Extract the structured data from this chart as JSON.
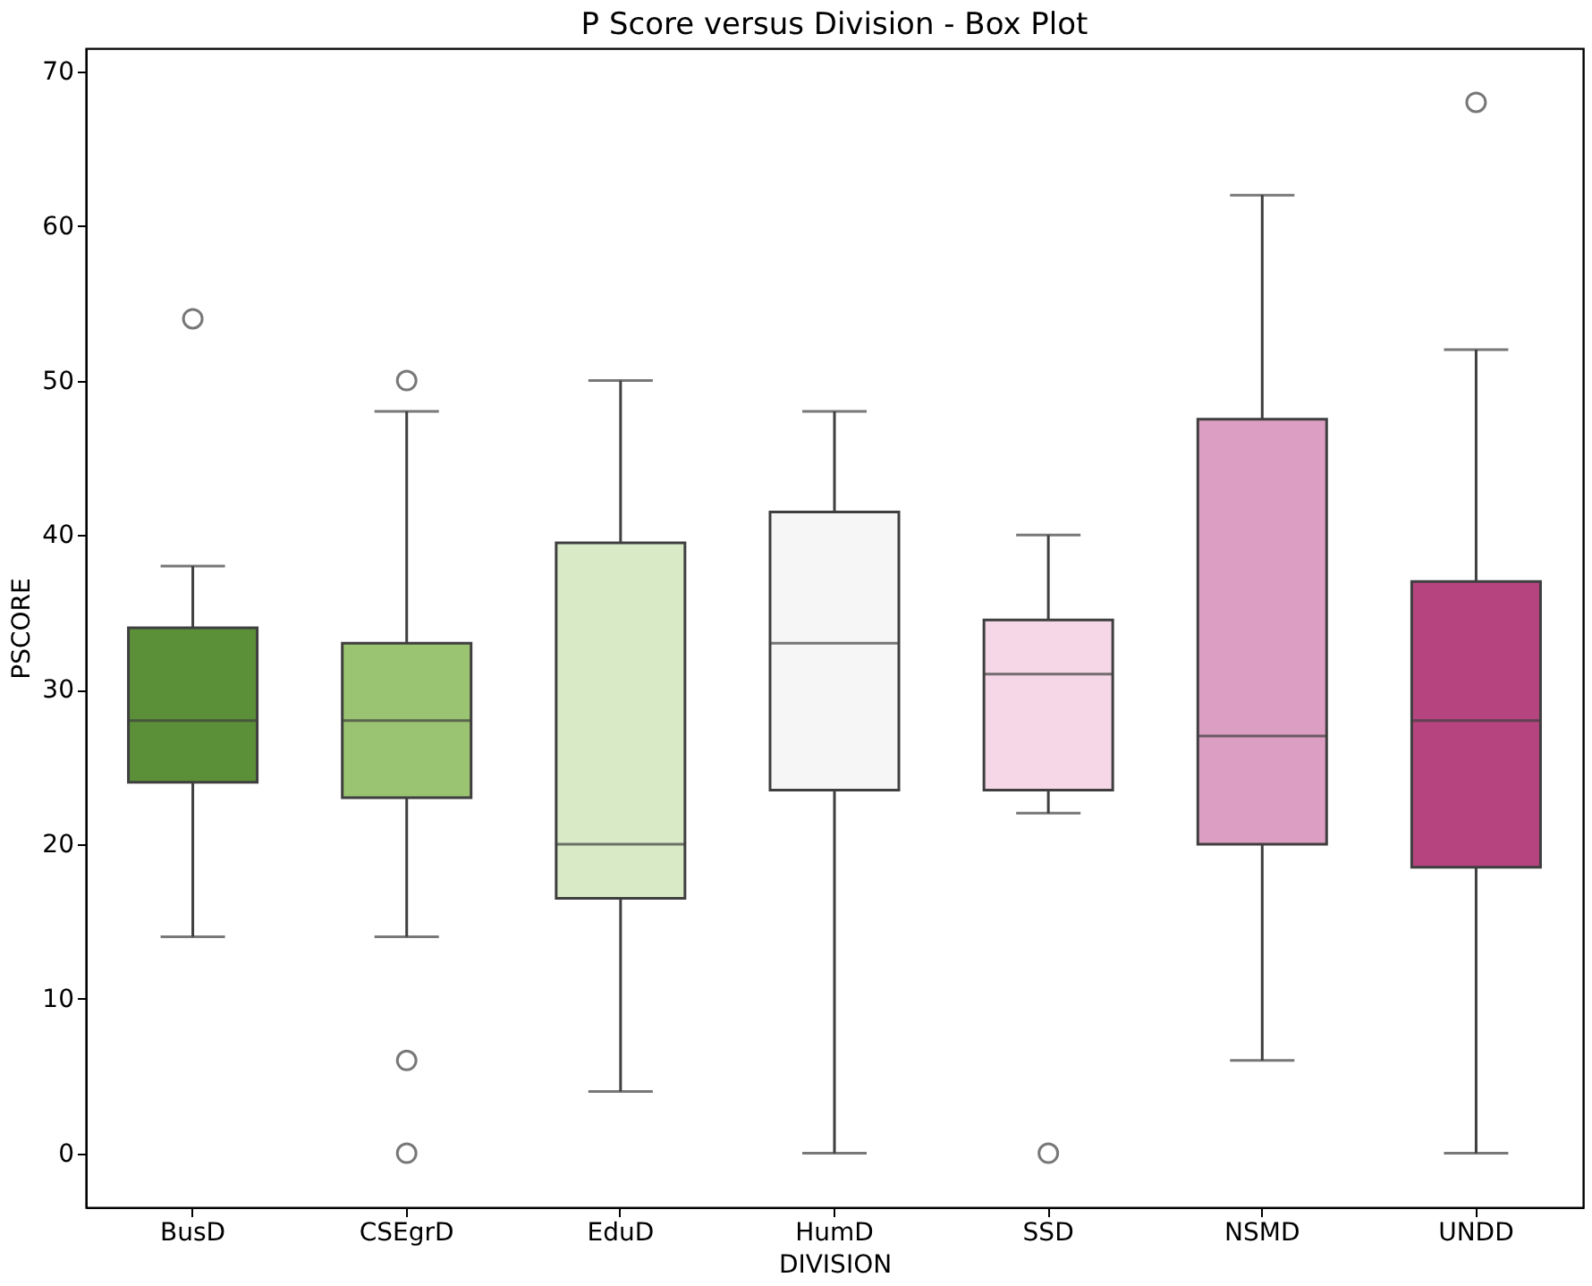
{
  "chart_data": {
    "type": "box",
    "title": "P Score versus Division - Box Plot",
    "xlabel": "DIVISION",
    "ylabel": "PSCORE",
    "categories": [
      "BusD",
      "CSEgrD",
      "EduD",
      "HumD",
      "SSD",
      "NSMD",
      "UNDD"
    ],
    "colors": [
      "#5b8f38",
      "#9bc472",
      "#d9eac7",
      "#f6f6f6",
      "#f5d7e7",
      "#dc9ec2",
      "#b5447f"
    ],
    "boxes": [
      {
        "low": 14,
        "q1": 24,
        "median": 28,
        "q3": 34,
        "high": 38,
        "outliers": [
          54
        ]
      },
      {
        "low": 14,
        "q1": 23,
        "median": 28,
        "q3": 33,
        "high": 48,
        "outliers": [
          50,
          6,
          0
        ]
      },
      {
        "low": 4,
        "q1": 16.5,
        "median": 20,
        "q3": 39.5,
        "high": 50
      },
      {
        "low": 0,
        "q1": 23.5,
        "median": 33,
        "q3": 41.5,
        "high": 48
      },
      {
        "low": 22,
        "q1": 23.5,
        "median": 31,
        "q3": 34.5,
        "high": 40,
        "outliers": [
          0
        ]
      },
      {
        "low": 6,
        "q1": 20,
        "median": 27,
        "q3": 47.5,
        "high": 62
      },
      {
        "low": 0,
        "q1": 18.5,
        "median": 28,
        "q3": 37,
        "high": 52,
        "outliers": [
          68
        ]
      }
    ],
    "ylim": [
      -3.5,
      71.5
    ],
    "yticks": [
      0,
      10,
      20,
      30,
      40,
      50,
      60,
      70
    ]
  }
}
